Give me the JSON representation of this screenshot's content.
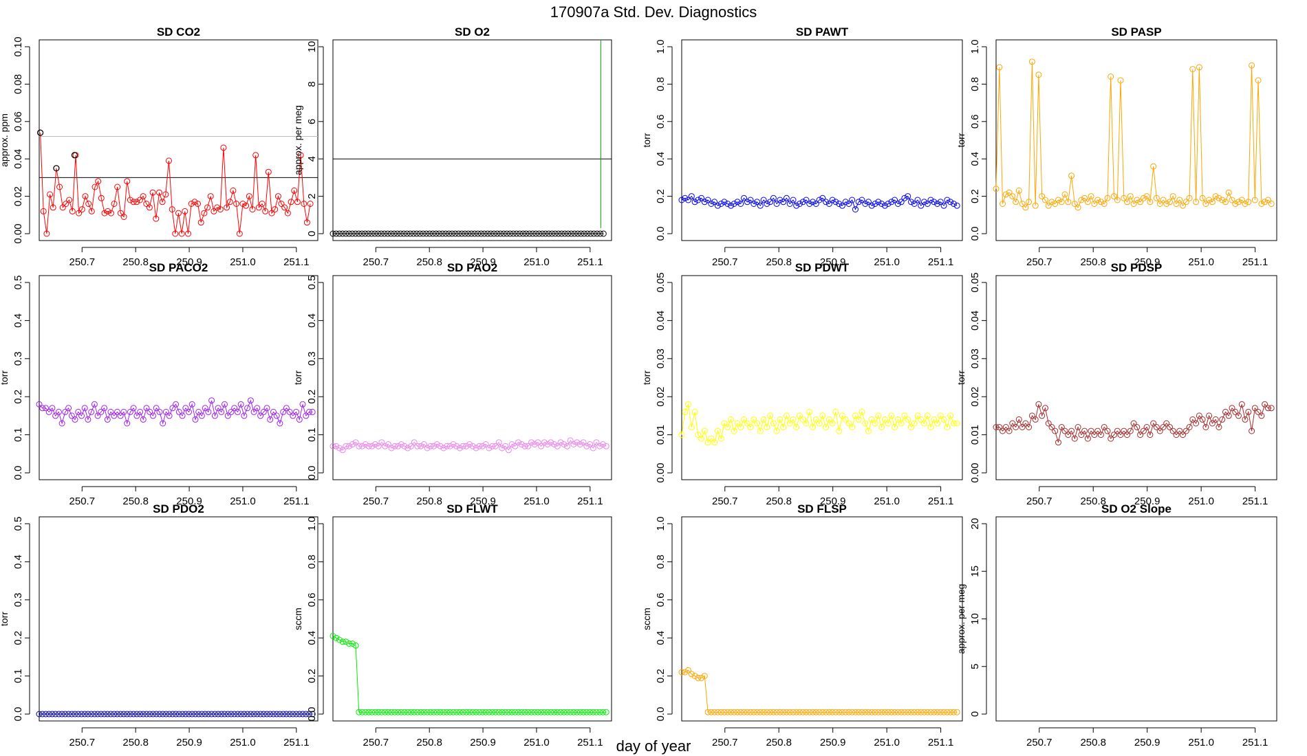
{
  "figure": {
    "title": "170907a   Std. Dev. Diagnostics",
    "xlabel": "day of year"
  },
  "chart_data": [
    {
      "type": "line",
      "title": "SD CO2",
      "ylabel": "approx. ppm",
      "color": "#ff0000",
      "ylim": [
        0,
        0.1
      ],
      "yticks": [
        "0.00",
        "0.02",
        "0.04",
        "0.06",
        "0.08",
        "0.10"
      ],
      "xlim": [
        250.62,
        251.14
      ],
      "xticks": [
        "250.7",
        "250.8",
        "250.9",
        "251.0",
        "251.1"
      ],
      "hlines": [
        {
          "y": 0.03,
          "color": "#000000"
        },
        {
          "y": 0.052,
          "color": "#bbbbbb"
        }
      ],
      "outliers": [
        {
          "x": 250.622,
          "y": 0.054
        },
        {
          "x": 250.652,
          "y": 0.035
        },
        {
          "x": 250.686,
          "y": 0.042
        }
      ],
      "x": [
        250.622,
        250.628,
        250.634,
        250.64,
        250.646,
        250.652,
        250.658,
        250.664,
        250.67,
        250.676,
        250.682,
        250.688,
        250.694,
        250.7,
        250.706,
        250.712,
        250.718,
        250.724,
        250.73,
        250.736,
        250.742,
        250.748,
        250.754,
        250.76,
        250.766,
        250.772,
        250.778,
        250.784,
        250.79,
        250.796,
        250.802,
        250.808,
        250.814,
        250.82,
        250.826,
        250.832,
        250.838,
        250.844,
        250.85,
        250.856,
        250.862,
        250.868,
        250.874,
        250.88,
        250.886,
        250.892,
        250.898,
        250.904,
        250.91,
        250.916,
        250.922,
        250.928,
        250.934,
        250.94,
        250.946,
        250.952,
        250.958,
        250.964,
        250.97,
        250.976,
        250.982,
        250.988,
        250.994,
        251,
        251.006,
        251.012,
        251.018,
        251.024,
        251.03,
        251.036,
        251.042,
        251.048,
        251.054,
        251.06,
        251.066,
        251.072,
        251.078,
        251.084,
        251.09,
        251.096,
        251.102,
        251.108,
        251.114,
        251.12,
        251.126
      ],
      "values": [
        0.054,
        0.012,
        0.0,
        0.021,
        0.014,
        0.035,
        0.025,
        0.014,
        0.016,
        0.018,
        0.012,
        0.042,
        0.011,
        0.013,
        0.02,
        0.016,
        0.012,
        0.025,
        0.028,
        0.019,
        0.011,
        0.012,
        0.011,
        0.016,
        0.025,
        0.011,
        0.009,
        0.028,
        0.018,
        0.017,
        0.017,
        0.018,
        0.02,
        0.016,
        0.014,
        0.022,
        0.008,
        0.022,
        0.017,
        0.021,
        0.039,
        0.013,
        0.0,
        0.011,
        0.0,
        0.012,
        0.0,
        0.016,
        0.017,
        0.016,
        0.006,
        0.011,
        0.014,
        0.02,
        0.012,
        0.014,
        0.013,
        0.046,
        0.014,
        0.017,
        0.023,
        0.016,
        0.0,
        0.016,
        0.015,
        0.02,
        0.013,
        0.042,
        0.014,
        0.016,
        0.012,
        0.033,
        0.011,
        0.013,
        0.02,
        0.016,
        0.014,
        0.011,
        0.017,
        0.023,
        0.017,
        0.042,
        0.016,
        0.006,
        0.016
      ]
    },
    {
      "type": "line",
      "title": "SD O2",
      "ylabel": "approx. per meg",
      "color": "#000000",
      "ylim": [
        0,
        10
      ],
      "yticks": [
        "0",
        "2",
        "4",
        "6",
        "8",
        "10"
      ],
      "xlim": [
        250.62,
        251.14
      ],
      "xticks": [
        "250.7",
        "250.8",
        "250.9",
        "251.0",
        "251.1"
      ],
      "hlines": [
        {
          "y": 4,
          "color": "#000000"
        }
      ],
      "vline": {
        "x": 251.12,
        "color": "#00aa00"
      },
      "x_range": [
        250.62,
        251.125
      ],
      "count": 85,
      "values_constant": 0.0
    },
    {
      "type": "line",
      "title": "SD PAWT",
      "ylabel": "torr",
      "color": "#0000ff",
      "ylim": [
        0,
        1
      ],
      "yticks": [
        "0.0",
        "0.2",
        "0.4",
        "0.6",
        "0.8",
        "1.0"
      ],
      "xlim": [
        250.62,
        251.14
      ],
      "xticks": [
        "250.7",
        "250.8",
        "250.9",
        "251.0",
        "251.1"
      ],
      "x_range": [
        250.62,
        251.13
      ],
      "count": 85,
      "values": [
        0.18,
        0.19,
        0.18,
        0.2,
        0.17,
        0.18,
        0.19,
        0.17,
        0.18,
        0.16,
        0.17,
        0.15,
        0.16,
        0.17,
        0.16,
        0.15,
        0.16,
        0.17,
        0.16,
        0.19,
        0.17,
        0.18,
        0.16,
        0.17,
        0.15,
        0.18,
        0.16,
        0.17,
        0.19,
        0.16,
        0.18,
        0.17,
        0.19,
        0.16,
        0.18,
        0.15,
        0.16,
        0.17,
        0.18,
        0.16,
        0.17,
        0.16,
        0.18,
        0.19,
        0.17,
        0.16,
        0.18,
        0.17,
        0.16,
        0.15,
        0.17,
        0.16,
        0.18,
        0.13,
        0.17,
        0.18,
        0.16,
        0.17,
        0.15,
        0.16,
        0.17,
        0.16,
        0.15,
        0.16,
        0.17,
        0.18,
        0.16,
        0.17,
        0.19,
        0.2,
        0.17,
        0.16,
        0.18,
        0.15,
        0.17,
        0.16,
        0.18,
        0.17,
        0.16,
        0.17,
        0.15,
        0.18,
        0.17,
        0.16,
        0.15
      ]
    },
    {
      "type": "line",
      "title": "SD PASP",
      "ylabel": "torr",
      "color": "#ffa500",
      "ylim": [
        0,
        1
      ],
      "yticks": [
        "0.0",
        "0.2",
        "0.4",
        "0.6",
        "0.8",
        "1.0"
      ],
      "xlim": [
        250.62,
        251.14
      ],
      "xticks": [
        "250.7",
        "250.8",
        "250.9",
        "251.0",
        "251.1"
      ],
      "x_range": [
        250.62,
        251.13
      ],
      "count": 85,
      "values": [
        0.24,
        0.89,
        0.16,
        0.21,
        0.22,
        0.2,
        0.17,
        0.23,
        0.16,
        0.14,
        0.17,
        0.92,
        0.15,
        0.85,
        0.2,
        0.18,
        0.15,
        0.17,
        0.16,
        0.18,
        0.17,
        0.21,
        0.17,
        0.31,
        0.16,
        0.14,
        0.18,
        0.19,
        0.17,
        0.2,
        0.16,
        0.18,
        0.17,
        0.16,
        0.19,
        0.84,
        0.2,
        0.18,
        0.82,
        0.19,
        0.17,
        0.2,
        0.16,
        0.18,
        0.17,
        0.19,
        0.2,
        0.17,
        0.36,
        0.19,
        0.16,
        0.18,
        0.16,
        0.17,
        0.2,
        0.16,
        0.18,
        0.15,
        0.17,
        0.19,
        0.88,
        0.17,
        0.89,
        0.19,
        0.16,
        0.18,
        0.17,
        0.2,
        0.19,
        0.18,
        0.17,
        0.22,
        0.18,
        0.16,
        0.17,
        0.18,
        0.16,
        0.17,
        0.9,
        0.18,
        0.82,
        0.16,
        0.17,
        0.18,
        0.16
      ]
    },
    {
      "type": "line",
      "title": "SD PACO2",
      "ylabel": "torr",
      "color": "#a020f0",
      "ylim": [
        0,
        0.5
      ],
      "yticks": [
        "0.0",
        "0.1",
        "0.2",
        "0.3",
        "0.4",
        "0.5"
      ],
      "xlim": [
        250.62,
        251.14
      ],
      "xticks": [
        "250.7",
        "250.8",
        "250.9",
        "251.0",
        "251.1"
      ],
      "x_range": [
        250.62,
        251.13
      ],
      "count": 85,
      "values": [
        0.18,
        0.17,
        0.17,
        0.16,
        0.17,
        0.15,
        0.16,
        0.13,
        0.16,
        0.17,
        0.15,
        0.14,
        0.16,
        0.15,
        0.17,
        0.14,
        0.16,
        0.18,
        0.15,
        0.16,
        0.17,
        0.14,
        0.16,
        0.15,
        0.16,
        0.15,
        0.16,
        0.13,
        0.16,
        0.17,
        0.15,
        0.16,
        0.14,
        0.17,
        0.16,
        0.15,
        0.17,
        0.16,
        0.13,
        0.16,
        0.15,
        0.17,
        0.18,
        0.16,
        0.15,
        0.17,
        0.16,
        0.18,
        0.14,
        0.16,
        0.15,
        0.17,
        0.16,
        0.19,
        0.15,
        0.17,
        0.16,
        0.18,
        0.15,
        0.16,
        0.17,
        0.16,
        0.18,
        0.15,
        0.17,
        0.19,
        0.16,
        0.17,
        0.15,
        0.16,
        0.17,
        0.14,
        0.16,
        0.15,
        0.13,
        0.16,
        0.17,
        0.16,
        0.15,
        0.16,
        0.14,
        0.18,
        0.15,
        0.16,
        0.16
      ]
    },
    {
      "type": "line",
      "title": "SD PAO2",
      "ylabel": "torr",
      "color": "#ee82ee",
      "ylim": [
        0,
        0.5
      ],
      "yticks": [
        "0.0",
        "0.1",
        "0.2",
        "0.3",
        "0.4",
        "0.5"
      ],
      "xlim": [
        250.62,
        251.14
      ],
      "xticks": [
        "250.7",
        "250.8",
        "250.9",
        "251.0",
        "251.1"
      ],
      "x_range": [
        250.62,
        251.13
      ],
      "count": 85,
      "values": [
        0.07,
        0.07,
        0.065,
        0.06,
        0.07,
        0.07,
        0.075,
        0.08,
        0.07,
        0.07,
        0.075,
        0.07,
        0.07,
        0.075,
        0.07,
        0.08,
        0.07,
        0.075,
        0.065,
        0.07,
        0.07,
        0.075,
        0.07,
        0.065,
        0.07,
        0.08,
        0.07,
        0.07,
        0.075,
        0.065,
        0.07,
        0.07,
        0.075,
        0.07,
        0.065,
        0.07,
        0.07,
        0.075,
        0.07,
        0.065,
        0.07,
        0.07,
        0.075,
        0.07,
        0.065,
        0.07,
        0.07,
        0.075,
        0.065,
        0.07,
        0.07,
        0.08,
        0.065,
        0.07,
        0.06,
        0.075,
        0.07,
        0.08,
        0.075,
        0.07,
        0.07,
        0.08,
        0.075,
        0.08,
        0.07,
        0.08,
        0.075,
        0.08,
        0.075,
        0.07,
        0.08,
        0.075,
        0.07,
        0.085,
        0.075,
        0.08,
        0.075,
        0.08,
        0.07,
        0.075,
        0.065,
        0.08,
        0.07,
        0.075,
        0.07
      ]
    },
    {
      "type": "line",
      "title": "SD PDWT",
      "ylabel": "torr",
      "color": "#ffff00",
      "ylim": [
        0,
        0.05
      ],
      "yticks": [
        "0.00",
        "0.01",
        "0.02",
        "0.03",
        "0.04",
        "0.05"
      ],
      "xlim": [
        250.62,
        251.14
      ],
      "xticks": [
        "250.7",
        "250.8",
        "250.9",
        "251.0",
        "251.1"
      ],
      "x_range": [
        250.62,
        251.13
      ],
      "count": 85,
      "values": [
        0.01,
        0.016,
        0.018,
        0.012,
        0.016,
        0.01,
        0.009,
        0.011,
        0.008,
        0.009,
        0.008,
        0.011,
        0.009,
        0.013,
        0.012,
        0.014,
        0.011,
        0.013,
        0.012,
        0.014,
        0.013,
        0.012,
        0.014,
        0.013,
        0.011,
        0.014,
        0.012,
        0.015,
        0.013,
        0.011,
        0.014,
        0.012,
        0.015,
        0.013,
        0.014,
        0.012,
        0.015,
        0.014,
        0.013,
        0.016,
        0.012,
        0.014,
        0.013,
        0.015,
        0.012,
        0.014,
        0.013,
        0.016,
        0.011,
        0.015,
        0.014,
        0.013,
        0.012,
        0.015,
        0.014,
        0.016,
        0.013,
        0.011,
        0.014,
        0.013,
        0.015,
        0.012,
        0.014,
        0.013,
        0.015,
        0.012,
        0.014,
        0.013,
        0.015,
        0.014,
        0.012,
        0.013,
        0.015,
        0.014,
        0.013,
        0.015,
        0.012,
        0.014,
        0.013,
        0.015,
        0.014,
        0.012,
        0.015,
        0.013,
        0.013
      ]
    },
    {
      "type": "line",
      "title": "SD PDSP",
      "ylabel": "torr",
      "color": "#a52a2a",
      "ylim": [
        0,
        0.05
      ],
      "yticks": [
        "0.00",
        "0.01",
        "0.02",
        "0.03",
        "0.04",
        "0.05"
      ],
      "xlim": [
        250.62,
        251.14
      ],
      "xticks": [
        "250.7",
        "250.8",
        "250.9",
        "251.0",
        "251.1"
      ],
      "x_range": [
        250.62,
        251.13
      ],
      "count": 85,
      "values": [
        0.012,
        0.012,
        0.011,
        0.012,
        0.011,
        0.013,
        0.012,
        0.014,
        0.012,
        0.013,
        0.012,
        0.015,
        0.014,
        0.018,
        0.015,
        0.017,
        0.013,
        0.012,
        0.011,
        0.008,
        0.012,
        0.011,
        0.01,
        0.011,
        0.009,
        0.012,
        0.01,
        0.011,
        0.009,
        0.011,
        0.01,
        0.011,
        0.01,
        0.012,
        0.011,
        0.009,
        0.01,
        0.011,
        0.01,
        0.011,
        0.01,
        0.011,
        0.013,
        0.012,
        0.01,
        0.011,
        0.012,
        0.01,
        0.013,
        0.012,
        0.011,
        0.012,
        0.013,
        0.012,
        0.011,
        0.01,
        0.011,
        0.01,
        0.011,
        0.012,
        0.014,
        0.013,
        0.015,
        0.014,
        0.012,
        0.015,
        0.013,
        0.014,
        0.012,
        0.014,
        0.016,
        0.015,
        0.017,
        0.016,
        0.015,
        0.018,
        0.014,
        0.016,
        0.011,
        0.017,
        0.016,
        0.015,
        0.018,
        0.017,
        0.017
      ]
    },
    {
      "type": "line",
      "title": "SD PDO2",
      "ylabel": "torr",
      "color": "#0000a0",
      "ylim": [
        0,
        0.5
      ],
      "yticks": [
        "0.0",
        "0.1",
        "0.2",
        "0.3",
        "0.4",
        "0.5"
      ],
      "xlim": [
        250.62,
        251.14
      ],
      "xticks": [
        "250.7",
        "250.8",
        "250.9",
        "251.0",
        "251.1"
      ],
      "x_range": [
        250.62,
        251.13
      ],
      "count": 85,
      "values_constant": 0.0
    },
    {
      "type": "line",
      "title": "SD FLWT",
      "ylabel": "sccm",
      "color": "#00ee00",
      "ylim": [
        0,
        1
      ],
      "yticks": [
        "0.0",
        "0.2",
        "0.4",
        "0.6",
        "0.8",
        "1.0"
      ],
      "xlim": [
        250.62,
        251.14
      ],
      "xticks": [
        "250.7",
        "250.8",
        "250.9",
        "251.0",
        "251.1"
      ],
      "x_range": [
        250.62,
        251.13
      ],
      "count": 85,
      "head_values": [
        0.41,
        0.4,
        0.39,
        0.38,
        0.38,
        0.37,
        0.37,
        0.36
      ],
      "tail_value": 0.01
    },
    {
      "type": "line",
      "title": "SD FLSP",
      "ylabel": "sccm",
      "color": "#ffa500",
      "ylim": [
        0,
        1
      ],
      "yticks": [
        "0.0",
        "0.2",
        "0.4",
        "0.6",
        "0.8",
        "1.0"
      ],
      "xlim": [
        250.62,
        251.14
      ],
      "xticks": [
        "250.7",
        "250.8",
        "250.9",
        "251.0",
        "251.1"
      ],
      "x_range": [
        250.62,
        251.13
      ],
      "count": 85,
      "head_values": [
        0.22,
        0.22,
        0.23,
        0.21,
        0.2,
        0.19,
        0.19,
        0.2
      ],
      "tail_value": 0.01
    },
    {
      "type": "line",
      "title": "SD O2 Slope",
      "ylabel": "approx. per meg",
      "color": "#000000",
      "ylim": [
        0,
        20
      ],
      "yticks": [
        "0",
        "5",
        "10",
        "15",
        "20"
      ],
      "xlim": [
        250.62,
        251.14
      ],
      "xticks": [
        "250.7",
        "250.8",
        "250.9",
        "251.0",
        "251.1"
      ],
      "values": []
    }
  ]
}
